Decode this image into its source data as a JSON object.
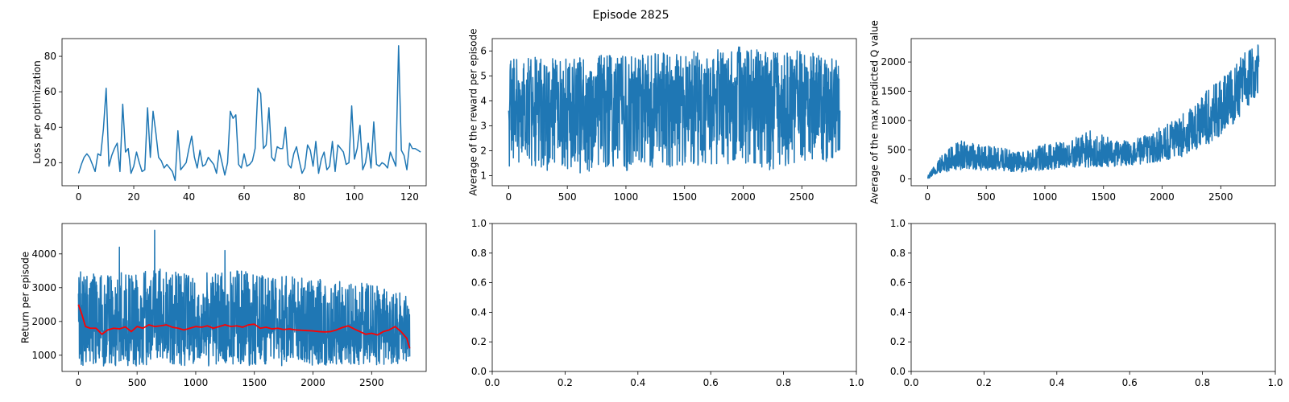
{
  "figure": {
    "suptitle": "Episode 2825"
  },
  "chart_data": [
    {
      "type": "line",
      "panel": "top-left",
      "ylabel": "Loss per optimization",
      "xlim": [
        -6,
        126
      ],
      "ylim": [
        7,
        90
      ],
      "xticks": [
        0,
        20,
        40,
        60,
        80,
        100,
        120
      ],
      "yticks": [
        20,
        40,
        60,
        80
      ],
      "series": [
        {
          "color": "#1f77b4",
          "x_start": 0,
          "x_step": 1,
          "values": [
            14,
            19,
            23,
            25,
            23,
            19,
            15,
            25,
            24,
            39,
            62,
            18,
            24,
            28,
            31,
            15,
            53,
            26,
            28,
            14,
            18,
            26,
            20,
            15,
            16,
            51,
            23,
            49,
            37,
            23,
            21,
            17,
            19,
            17,
            15,
            10,
            38,
            16,
            18,
            20,
            28,
            35,
            23,
            17,
            27,
            18,
            19,
            23,
            21,
            19,
            14,
            27,
            20,
            13,
            20,
            49,
            45,
            47,
            19,
            17,
            25,
            18,
            19,
            21,
            28,
            62,
            59,
            28,
            30,
            51,
            23,
            21,
            29,
            28,
            28,
            40,
            19,
            17,
            25,
            29,
            21,
            14,
            17,
            30,
            27,
            18,
            32,
            14,
            22,
            26,
            16,
            18,
            32,
            15,
            30,
            28,
            26,
            19,
            20,
            52,
            22,
            28,
            41,
            16,
            20,
            31,
            17,
            43,
            19,
            18,
            20,
            19,
            17,
            26,
            22,
            18,
            86,
            27,
            24,
            16,
            31,
            28,
            28,
            27,
            26
          ]
        }
      ]
    },
    {
      "type": "line",
      "panel": "top-middle",
      "ylabel": "Average of the reward per episode",
      "xlim": [
        -140,
        2965
      ],
      "ylim": [
        0.6,
        6.5
      ],
      "xticks": [
        0,
        500,
        1000,
        1500,
        2000,
        2500
      ],
      "yticks": [
        1,
        2,
        3,
        4,
        5,
        6
      ],
      "series": [
        {
          "color": "#1f77b4",
          "x_end": 2825,
          "note_values": "dense noisy signal; band envelopes in data units",
          "band_x": [
            0,
            250,
            500,
            750,
            1000,
            1250,
            1500,
            1750,
            2000,
            2250,
            2500,
            2825
          ],
          "band_low": [
            1.3,
            1.3,
            1.0,
            1.2,
            1.2,
            1.3,
            1.4,
            1.4,
            1.5,
            1.2,
            1.6,
            1.4
          ],
          "band_high": [
            5.7,
            5.8,
            5.7,
            5.9,
            5.8,
            5.9,
            6.0,
            6.1,
            6.2,
            6.1,
            6.0,
            5.7
          ],
          "band_mid": [
            3.6,
            3.6,
            3.7,
            3.8,
            3.8,
            3.9,
            4.0,
            4.1,
            4.2,
            4.2,
            4.3,
            4.4
          ]
        }
      ]
    },
    {
      "type": "line",
      "panel": "top-right",
      "ylabel": "Average of the max predicted Q value",
      "xlim": [
        -140,
        2965
      ],
      "ylim": [
        -115,
        2400
      ],
      "xticks": [
        0,
        500,
        1000,
        1500,
        2000,
        2500
      ],
      "yticks": [
        0,
        500,
        1000,
        1500,
        2000
      ],
      "series": [
        {
          "color": "#1f77b4",
          "x_end": 2825,
          "note_values": "dense noisy signal; band envelopes in data units",
          "band_x": [
            0,
            100,
            250,
            400,
            600,
            800,
            1000,
            1200,
            1400,
            1600,
            1800,
            2000,
            2200,
            2400,
            2600,
            2700,
            2825
          ],
          "band_low": [
            0,
            100,
            150,
            150,
            150,
            100,
            150,
            200,
            200,
            200,
            250,
            300,
            400,
            600,
            900,
            1100,
            1500
          ],
          "band_high": [
            50,
            350,
            700,
            600,
            550,
            450,
            600,
            650,
            850,
            650,
            700,
            900,
            1150,
            1550,
            1900,
            2150,
            2300
          ],
          "band_mid": [
            20,
            200,
            350,
            330,
            320,
            270,
            320,
            380,
            400,
            400,
            450,
            550,
            700,
            950,
            1300,
            1600,
            2000
          ]
        }
      ]
    },
    {
      "type": "line",
      "panel": "bottom-left",
      "ylabel": "Return per episode",
      "xlim": [
        -140,
        2965
      ],
      "ylim": [
        520,
        4900
      ],
      "xticks": [
        0,
        500,
        1000,
        1500,
        2000,
        2500
      ],
      "yticks": [
        1000,
        2000,
        3000,
        4000
      ],
      "series": [
        {
          "color": "#1f77b4",
          "x_end": 2825,
          "note_values": "dense noisy signal; band envelopes in data units",
          "band_x": [
            0,
            250,
            500,
            750,
            1000,
            1250,
            1500,
            1750,
            2000,
            2250,
            2500,
            2825
          ],
          "band_low": [
            700,
            680,
            680,
            700,
            680,
            680,
            700,
            680,
            680,
            680,
            700,
            700
          ],
          "band_high": [
            3500,
            3400,
            3500,
            3600,
            3400,
            3500,
            3500,
            3400,
            3300,
            3200,
            3100,
            2800
          ],
          "band_mid": [
            1800,
            1750,
            1800,
            1850,
            1800,
            1800,
            1850,
            1750,
            1700,
            1700,
            1650,
            1600
          ],
          "spikes": [
            [
              350,
              4200
            ],
            [
              650,
              4700
            ],
            [
              1250,
              4100
            ]
          ]
        },
        {
          "color": "#ff0000",
          "x": [
            0,
            30,
            60,
            100,
            150,
            200,
            250,
            300,
            350,
            400,
            450,
            500,
            550,
            600,
            650,
            700,
            750,
            800,
            850,
            900,
            950,
            1000,
            1050,
            1100,
            1150,
            1200,
            1250,
            1300,
            1350,
            1400,
            1450,
            1500,
            1550,
            1600,
            1650,
            1700,
            1750,
            1800,
            1850,
            1900,
            1950,
            2000,
            2050,
            2100,
            2150,
            2200,
            2250,
            2300,
            2350,
            2400,
            2450,
            2500,
            2550,
            2600,
            2650,
            2700,
            2750,
            2800,
            2825
          ],
          "values": [
            2500,
            2200,
            1850,
            1800,
            1800,
            1620,
            1750,
            1800,
            1780,
            1840,
            1700,
            1850,
            1800,
            1900,
            1850,
            1870,
            1900,
            1830,
            1800,
            1750,
            1800,
            1850,
            1830,
            1870,
            1800,
            1850,
            1900,
            1850,
            1870,
            1830,
            1900,
            1920,
            1800,
            1830,
            1780,
            1800,
            1760,
            1780,
            1750,
            1740,
            1730,
            1720,
            1700,
            1690,
            1700,
            1750,
            1820,
            1870,
            1780,
            1700,
            1620,
            1650,
            1600,
            1700,
            1750,
            1850,
            1700,
            1500,
            1200
          ]
        }
      ]
    },
    {
      "type": "line",
      "panel": "bottom-middle",
      "ylabel": "",
      "xlim": [
        0,
        1
      ],
      "ylim": [
        0,
        1
      ],
      "xticks": [
        0.0,
        0.2,
        0.4,
        0.6,
        0.8,
        1.0
      ],
      "yticks": [
        0.0,
        0.2,
        0.4,
        0.6,
        0.8,
        1.0
      ],
      "series": []
    },
    {
      "type": "line",
      "panel": "bottom-right",
      "ylabel": "",
      "xlim": [
        0,
        1
      ],
      "ylim": [
        0,
        1
      ],
      "xticks": [
        0.0,
        0.2,
        0.4,
        0.6,
        0.8,
        1.0
      ],
      "yticks": [
        0.0,
        0.2,
        0.4,
        0.6,
        0.8,
        1.0
      ],
      "series": []
    }
  ]
}
